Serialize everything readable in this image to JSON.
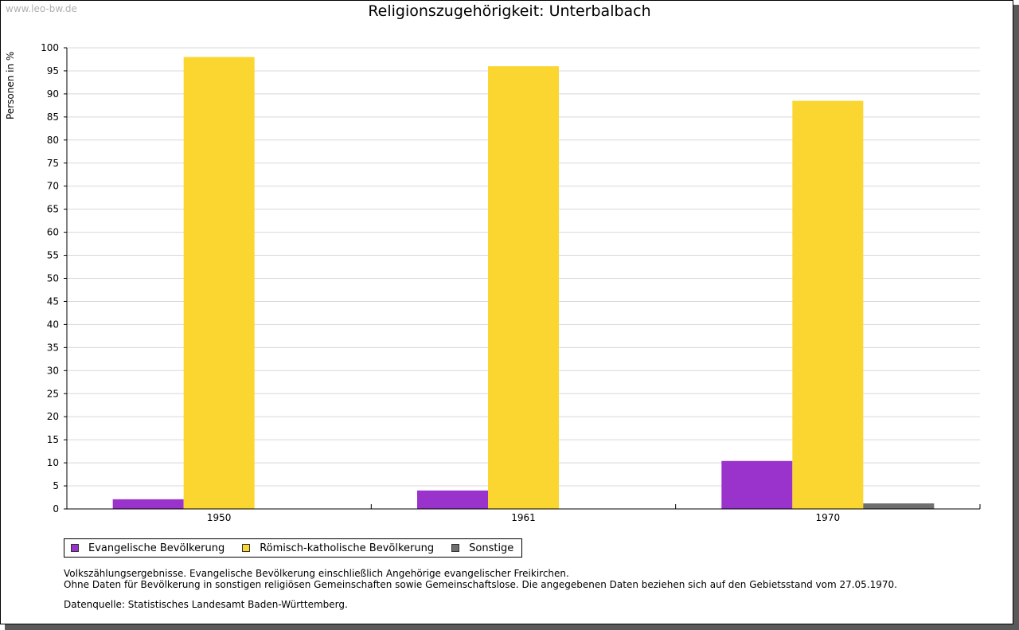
{
  "watermark": "www.leo-bw.de",
  "chart_data": {
    "type": "bar",
    "title": "Religionszugehörigkeit: Unterbalbach",
    "ylabel": "Personen in %",
    "xlabel": "",
    "ylim": [
      0,
      100
    ],
    "yticks": [
      "0",
      "5",
      "10",
      "15",
      "20",
      "25",
      "30",
      "35",
      "40",
      "45",
      "50",
      "55",
      "60",
      "65",
      "70",
      "75",
      "80",
      "85",
      "90",
      "95",
      "100"
    ],
    "grid": true,
    "categories": [
      "1950",
      "1961",
      "1970"
    ],
    "series": [
      {
        "name": "Evangelische Bevölkerung",
        "color": "#9933cc",
        "values": [
          2.1,
          4.0,
          10.4
        ]
      },
      {
        "name": "Römisch-katholische Bevölkerung",
        "color": "#fbd630",
        "values": [
          98.0,
          96.0,
          88.5
        ]
      },
      {
        "name": "Sonstige",
        "color": "#6e6e6e",
        "values": [
          0.0,
          0.0,
          1.2
        ]
      }
    ],
    "legend_position": "bottom-left"
  },
  "notes": {
    "line1": "Volkszählungsergebnisse. Evangelische Bevölkerung einschließlich Angehörige evangelischer Freikirchen.",
    "line2": "Ohne Daten für Bevölkerung in sonstigen religiösen Gemeinschaften sowie Gemeinschaftslose. Die angegebenen Daten beziehen sich auf den Gebietsstand vom 27.05.1970.",
    "source": "Datenquelle: Statistisches Landesamt Baden-Württemberg."
  }
}
